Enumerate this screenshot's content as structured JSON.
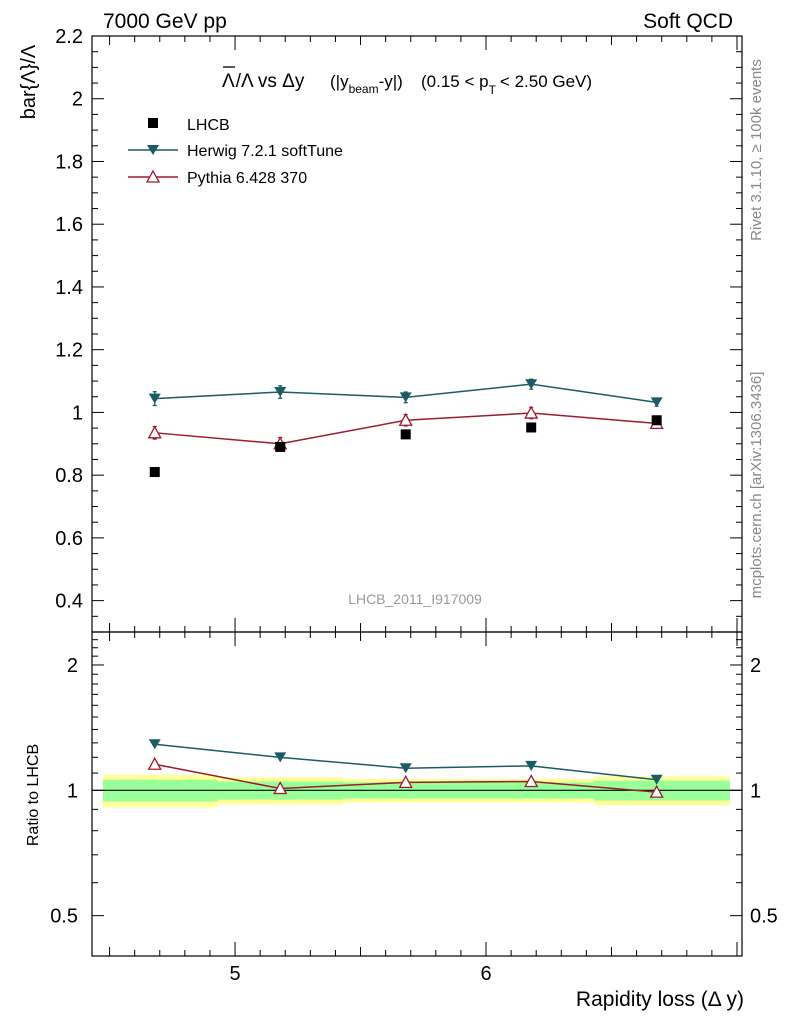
{
  "chart_data": {
    "type": "line",
    "header_left": "7000 GeV pp",
    "header_right": "Soft QCD",
    "title": {
      "lambda_bar": "Λ",
      "slash_lambda": "/Λ vs Δy",
      "paren_open": "(|y",
      "beam_sub": "beam",
      "minus_y": "-y|)",
      "pt_open": "(0.15 < p",
      "t_sub": "T",
      "pt_close": "< 2.50 GeV)"
    },
    "ylabel": "bar{Λ}/Λ",
    "xlabel": "Rapidity loss (Δ y)",
    "ratio_ylabel": "Ratio to LHCB",
    "right_label_top": "Rivet 3.1.10, ≥ 100k events",
    "right_label_bottom": "mcplots.cern.ch [arXiv:1306.3436]",
    "watermark": "LHCB_2011_I917009",
    "xlim": [
      4.43,
      7.02
    ],
    "ylim": [
      0.3,
      2.2
    ],
    "ratio_ylim": [
      0.4,
      2.4
    ],
    "x_ticks": [
      5,
      6
    ],
    "x_tick_labels": [
      "5",
      "6"
    ],
    "y_ticks": [
      0.4,
      0.6,
      0.8,
      1.0,
      1.2,
      1.4,
      1.6,
      1.8,
      2.0,
      2.2
    ],
    "y_tick_labels": [
      "0.4",
      "0.6",
      "0.8",
      "1",
      "1.2",
      "1.4",
      "1.6",
      "1.8",
      "2",
      "2.2"
    ],
    "ratio_ticks": [
      0.5,
      1,
      2
    ],
    "ratio_tick_labels": [
      "0.5",
      "1",
      "2"
    ],
    "x": [
      4.68,
      5.18,
      5.68,
      6.18,
      6.68
    ],
    "series": [
      {
        "name": "LHCB",
        "color": "#000000",
        "marker": "square",
        "values": [
          0.81,
          0.89,
          0.93,
          0.952,
          0.975
        ],
        "errors": [
          0.006,
          0.006,
          0.006,
          0.006,
          0.006
        ],
        "ratio": [
          1.0,
          1.0,
          1.0,
          1.0,
          1.0
        ]
      },
      {
        "name": "Herwig 7.2.1 softTune",
        "color": "#1d5a63",
        "marker": "triangle-down",
        "values": [
          1.044,
          1.065,
          1.048,
          1.09,
          1.032
        ],
        "errors": [
          0.022,
          0.02,
          0.017,
          0.016,
          0.012
        ],
        "ratio": [
          1.29,
          1.2,
          1.13,
          1.145,
          1.06
        ]
      },
      {
        "name": "Pythia 6.428 370",
        "color": "#9b1b30",
        "marker": "triangle-up-open",
        "values": [
          0.935,
          0.9,
          0.975,
          0.998,
          0.965
        ],
        "errors": [
          0.02,
          0.02,
          0.018,
          0.018,
          0.014
        ],
        "ratio": [
          1.155,
          1.01,
          1.045,
          1.05,
          0.99
        ]
      }
    ],
    "ratio_bands": {
      "edges": [
        4.43,
        4.93,
        5.43,
        5.93,
        6.43,
        6.93
      ],
      "outer": [
        0.09,
        0.075,
        0.065,
        0.065,
        0.08
      ],
      "inner": [
        0.06,
        0.05,
        0.045,
        0.045,
        0.055
      ],
      "outer_color": "#ffff99",
      "inner_color": "#99ff99"
    }
  }
}
